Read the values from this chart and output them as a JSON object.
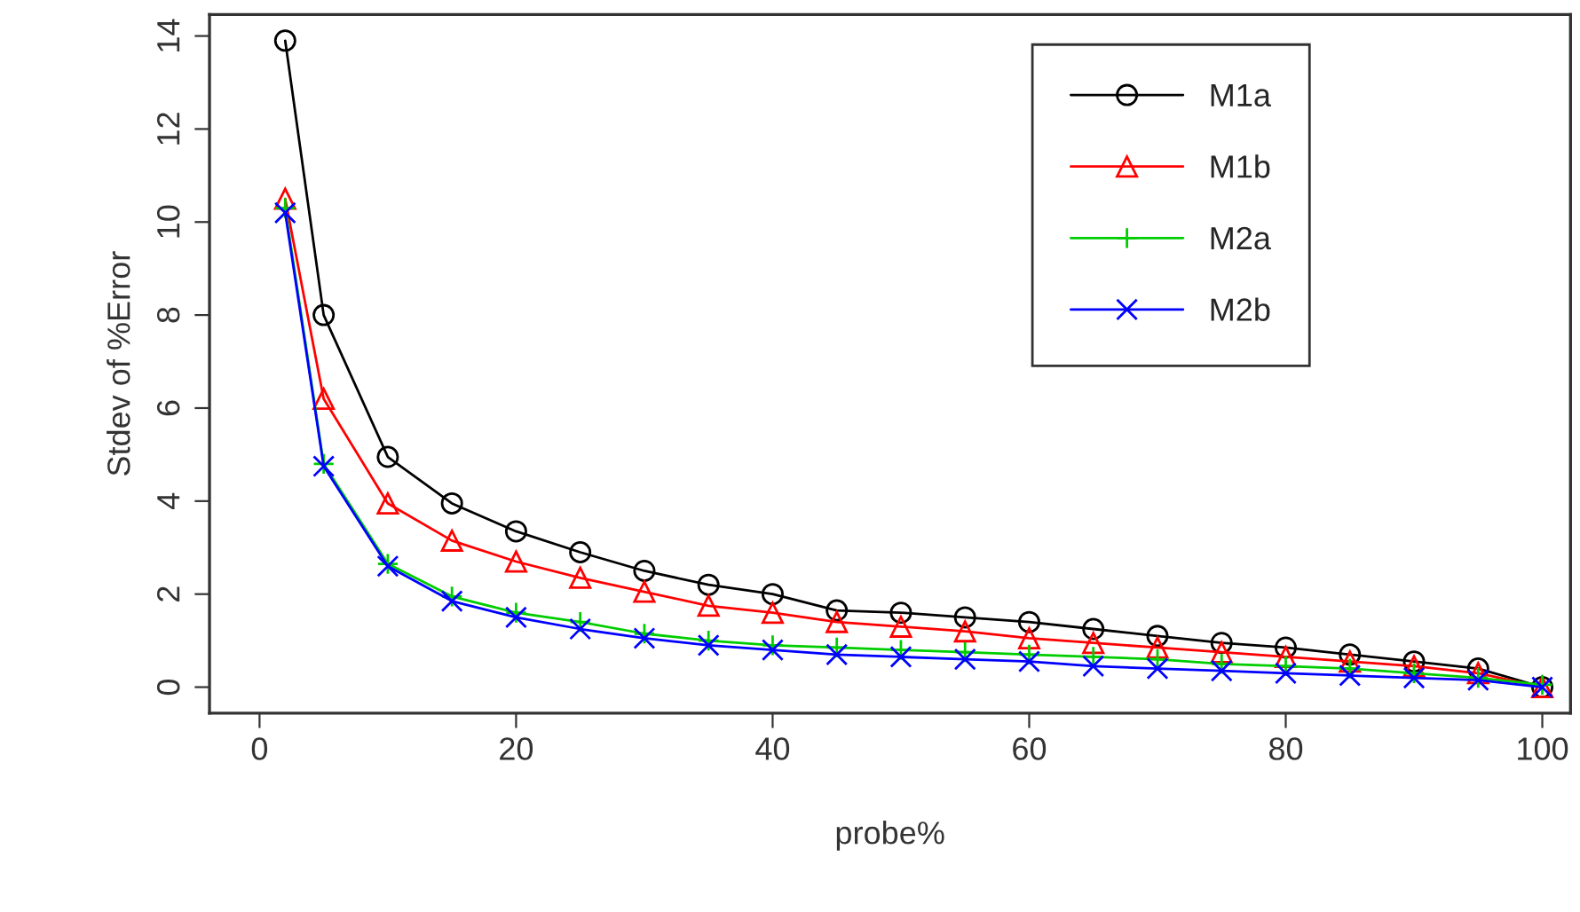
{
  "chart_data": {
    "type": "line",
    "xlabel": "probe%",
    "ylabel": "Stdev of %Error",
    "x": [
      2,
      5,
      10,
      15,
      20,
      25,
      30,
      35,
      40,
      45,
      50,
      55,
      60,
      65,
      70,
      75,
      80,
      85,
      90,
      95,
      100
    ],
    "series": [
      {
        "name": "M1a",
        "color": "#000000",
        "marker": "circle",
        "values": [
          13.9,
          8.0,
          4.95,
          3.95,
          3.35,
          2.9,
          2.5,
          2.2,
          2.0,
          1.65,
          1.6,
          1.5,
          1.4,
          1.25,
          1.1,
          0.95,
          0.85,
          0.7,
          0.55,
          0.4,
          0.0
        ]
      },
      {
        "name": "M1b",
        "color": "#ff0000",
        "marker": "triangle",
        "values": [
          10.5,
          6.2,
          3.95,
          3.15,
          2.7,
          2.35,
          2.05,
          1.75,
          1.6,
          1.4,
          1.3,
          1.2,
          1.05,
          0.95,
          0.85,
          0.75,
          0.65,
          0.55,
          0.45,
          0.3,
          0.0
        ]
      },
      {
        "name": "M2a",
        "color": "#00cd00",
        "marker": "cross",
        "values": [
          10.3,
          4.8,
          2.65,
          1.95,
          1.6,
          1.4,
          1.15,
          1.0,
          0.9,
          0.85,
          0.8,
          0.75,
          0.7,
          0.65,
          0.6,
          0.5,
          0.45,
          0.4,
          0.3,
          0.2,
          0.05
        ]
      },
      {
        "name": "M2b",
        "color": "#0000ff",
        "marker": "x",
        "values": [
          10.2,
          4.75,
          2.6,
          1.85,
          1.5,
          1.25,
          1.05,
          0.9,
          0.8,
          0.7,
          0.65,
          0.6,
          0.55,
          0.45,
          0.4,
          0.35,
          0.3,
          0.25,
          0.2,
          0.15,
          0.0
        ]
      }
    ],
    "xlim": [
      -3.9,
      102.2
    ],
    "ylim": [
      -0.56,
      14.46
    ],
    "xticks": [
      0,
      20,
      40,
      60,
      80,
      100
    ],
    "yticks": [
      0,
      2,
      4,
      6,
      8,
      10,
      12,
      14
    ],
    "legend": "top right",
    "grid": false,
    "line_style": "solid"
  }
}
